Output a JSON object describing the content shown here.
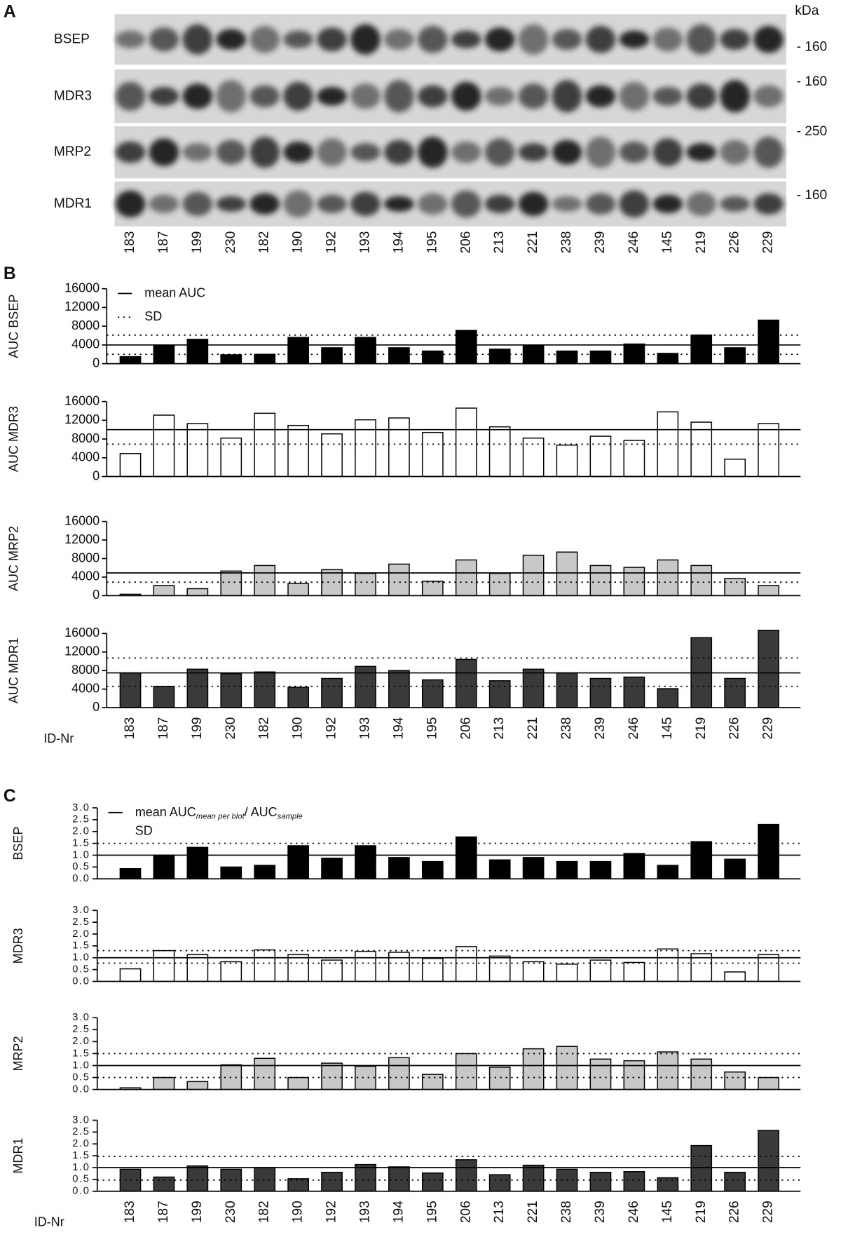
{
  "panel_labels": {
    "a": "A",
    "b": "B",
    "c": "C"
  },
  "blot": {
    "unit": "kDa",
    "rows": [
      {
        "name": "BSEP",
        "marker": "- 160"
      },
      {
        "name": "MDR3",
        "marker": "- 160"
      },
      {
        "name": "MRP2",
        "marker": "- 250"
      },
      {
        "name": "MDR1",
        "marker": "- 160"
      }
    ],
    "lanes": [
      "183",
      "187",
      "199",
      "230",
      "182",
      "190",
      "192",
      "193",
      "194",
      "195",
      "206",
      "213",
      "221",
      "238",
      "239",
      "246",
      "145",
      "219",
      "226",
      "229"
    ]
  },
  "chart_data": [
    {
      "type": "bar",
      "ylabel": "AUC BSEP",
      "color": "#000000",
      "values": [
        1500,
        3900,
        5200,
        1900,
        2000,
        5600,
        3400,
        5600,
        3400,
        2700,
        7100,
        3100,
        3900,
        2700,
        2700,
        4200,
        2200,
        6100,
        3400,
        9300
      ],
      "ylim": [
        0,
        16000
      ],
      "yticks": [
        0,
        4000,
        8000,
        12000,
        16000
      ],
      "mean": 4000,
      "sd_lines": [
        2000,
        6100
      ],
      "legend": {
        "mean": "mean AUC",
        "sd": "SD"
      }
    },
    {
      "type": "bar",
      "ylabel": "AUC MDR3",
      "color": "#ffffff",
      "values": [
        4900,
        13100,
        11300,
        8200,
        13500,
        10900,
        9100,
        12100,
        12500,
        9400,
        14600,
        10600,
        8200,
        6700,
        8600,
        7700,
        13800,
        11600,
        3700,
        11300
      ],
      "ylim": [
        0,
        16000
      ],
      "yticks": [
        0,
        4000,
        8000,
        12000,
        16000
      ],
      "mean": 10000,
      "sd_lines": [
        6900
      ]
    },
    {
      "type": "bar",
      "ylabel": "AUC MRP2",
      "color": "#c8c8c8",
      "values": [
        300,
        2200,
        1500,
        5300,
        6500,
        2600,
        5600,
        4800,
        6800,
        3100,
        7700,
        4800,
        8700,
        9400,
        6500,
        6100,
        7700,
        6500,
        3700,
        2200
      ],
      "ylim": [
        0,
        16000
      ],
      "yticks": [
        0,
        4000,
        8000,
        12000,
        16000
      ],
      "mean": 4900,
      "sd_lines": [
        2900
      ]
    },
    {
      "type": "bar",
      "ylabel": "AUC MDR1",
      "color": "#3a3a3a",
      "values": [
        7500,
        4600,
        8300,
        7300,
        7700,
        4400,
        6300,
        8900,
        8000,
        6000,
        10400,
        5800,
        8300,
        7500,
        6300,
        6600,
        4100,
        15100,
        6300,
        16700
      ],
      "ylim": [
        0,
        16000
      ],
      "yticks": [
        0,
        4000,
        8000,
        12000,
        16000
      ],
      "mean": 7500,
      "sd_lines": [
        4600,
        10700
      ],
      "xlabel": "ID-Nr",
      "categories": [
        "183",
        "187",
        "199",
        "230",
        "182",
        "190",
        "192",
        "193",
        "194",
        "195",
        "206",
        "213",
        "221",
        "238",
        "239",
        "246",
        "145",
        "219",
        "226",
        "229"
      ]
    },
    {
      "type": "bar",
      "ylabel": "BSEP",
      "color": "#000000",
      "values": [
        0.43,
        1.0,
        1.33,
        0.5,
        0.57,
        1.4,
        0.87,
        1.4,
        0.9,
        0.73,
        1.77,
        0.8,
        0.9,
        0.73,
        0.73,
        1.07,
        0.57,
        1.57,
        0.83,
        2.3
      ],
      "ylim": [
        0,
        3
      ],
      "yticks": [
        {
          "value": 0,
          "label": "0.0"
        },
        {
          "value": 0.5,
          "label": "0.5"
        },
        {
          "value": 1,
          "label": "1.0"
        },
        {
          "value": 1.5,
          "label": "1.5"
        },
        {
          "value": 2,
          "label": "2.0"
        },
        {
          "value": 2.5,
          "label": "2.5"
        },
        {
          "value": 3,
          "label": "3.0"
        }
      ],
      "mean": 1,
      "sd_lines": [
        1.5
      ],
      "legend": {
        "mean": "mean AUC",
        "mean_sub": "mean per blot",
        "ratio": "/ AUC",
        "ratio_sub": "sample",
        "sd": "SD"
      }
    },
    {
      "type": "bar",
      "ylabel": "MDR3",
      "color": "#ffffff",
      "values": [
        0.53,
        1.3,
        1.13,
        0.83,
        1.33,
        1.13,
        0.9,
        1.27,
        1.23,
        0.97,
        1.47,
        1.07,
        0.83,
        0.73,
        0.9,
        0.8,
        1.37,
        1.17,
        0.4,
        1.13
      ],
      "ylim": [
        0,
        3
      ],
      "yticks": [
        {
          "value": 0,
          "label": "0.0"
        },
        {
          "value": 0.5,
          "label": "0.5"
        },
        {
          "value": 1,
          "label": "1.0"
        },
        {
          "value": 1.5,
          "label": "1.5"
        },
        {
          "value": 2,
          "label": "2.0"
        },
        {
          "value": 2.5,
          "label": "2.5"
        },
        {
          "value": 3,
          "label": "3.0"
        }
      ],
      "mean": 1,
      "sd_lines": [
        0.77,
        1.3
      ]
    },
    {
      "type": "bar",
      "ylabel": "MRP2",
      "color": "#c8c8c8",
      "values": [
        0.07,
        0.5,
        0.33,
        1.03,
        1.3,
        0.5,
        1.1,
        0.97,
        1.33,
        0.63,
        1.5,
        0.93,
        1.7,
        1.8,
        1.27,
        1.2,
        1.57,
        1.27,
        0.73,
        0.5
      ],
      "ylim": [
        0,
        3
      ],
      "yticks": [
        {
          "value": 0,
          "label": "0.0"
        },
        {
          "value": 0.5,
          "label": "0.5"
        },
        {
          "value": 1,
          "label": "1.0"
        },
        {
          "value": 1.5,
          "label": "1.5"
        },
        {
          "value": 2,
          "label": "2.0"
        },
        {
          "value": 2.5,
          "label": "2.5"
        },
        {
          "value": 3,
          "label": "3.0"
        }
      ],
      "mean": 1,
      "sd_lines": [
        0.5,
        1.5
      ]
    },
    {
      "type": "bar",
      "ylabel": "MDR1",
      "color": "#3a3a3a",
      "values": [
        0.93,
        0.6,
        1.07,
        0.93,
        1.0,
        0.53,
        0.8,
        1.13,
        1.03,
        0.77,
        1.33,
        0.7,
        1.1,
        0.93,
        0.8,
        0.83,
        0.57,
        1.93,
        0.8,
        2.57
      ],
      "ylim": [
        0,
        3
      ],
      "yticks": [
        {
          "value": 0,
          "label": "0.0"
        },
        {
          "value": 0.5,
          "label": "0.5"
        },
        {
          "value": 1,
          "label": "1.0"
        },
        {
          "value": 1.5,
          "label": "1.5"
        },
        {
          "value": 2,
          "label": "2.0"
        },
        {
          "value": 2.5,
          "label": "2.5"
        },
        {
          "value": 3,
          "label": "3.0"
        }
      ],
      "mean": 1,
      "sd_lines": [
        0.47,
        1.47
      ],
      "xlabel": "ID-Nr",
      "categories": [
        "183",
        "187",
        "199",
        "230",
        "182",
        "190",
        "192",
        "193",
        "194",
        "195",
        "206",
        "213",
        "221",
        "238",
        "239",
        "246",
        "145",
        "219",
        "226",
        "229"
      ]
    }
  ]
}
